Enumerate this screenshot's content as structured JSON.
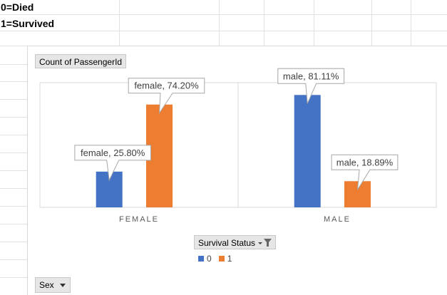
{
  "sheet": {
    "cell_a1": "0=Died",
    "cell_a2": "1=Survived"
  },
  "pivot": {
    "values_field": "Count of PassengerId",
    "legend_field": "Survival Status",
    "axis_field": "Sex"
  },
  "colors": {
    "series_0": "#4472c4",
    "series_1": "#ed7d31"
  },
  "chart_data": {
    "type": "bar",
    "categories": [
      "FEMALE",
      "MALE"
    ],
    "series": [
      {
        "name": "0",
        "values": [
          25.8,
          81.11
        ]
      },
      {
        "name": "1",
        "values": [
          74.2,
          18.89
        ]
      }
    ],
    "data_labels": [
      [
        "female, 25.80%",
        "male, 81.11%"
      ],
      [
        "female, 74.20%",
        "male, 18.89%"
      ]
    ],
    "ylim": [
      0,
      90
    ],
    "grid": false,
    "legend_position": "bottom"
  }
}
